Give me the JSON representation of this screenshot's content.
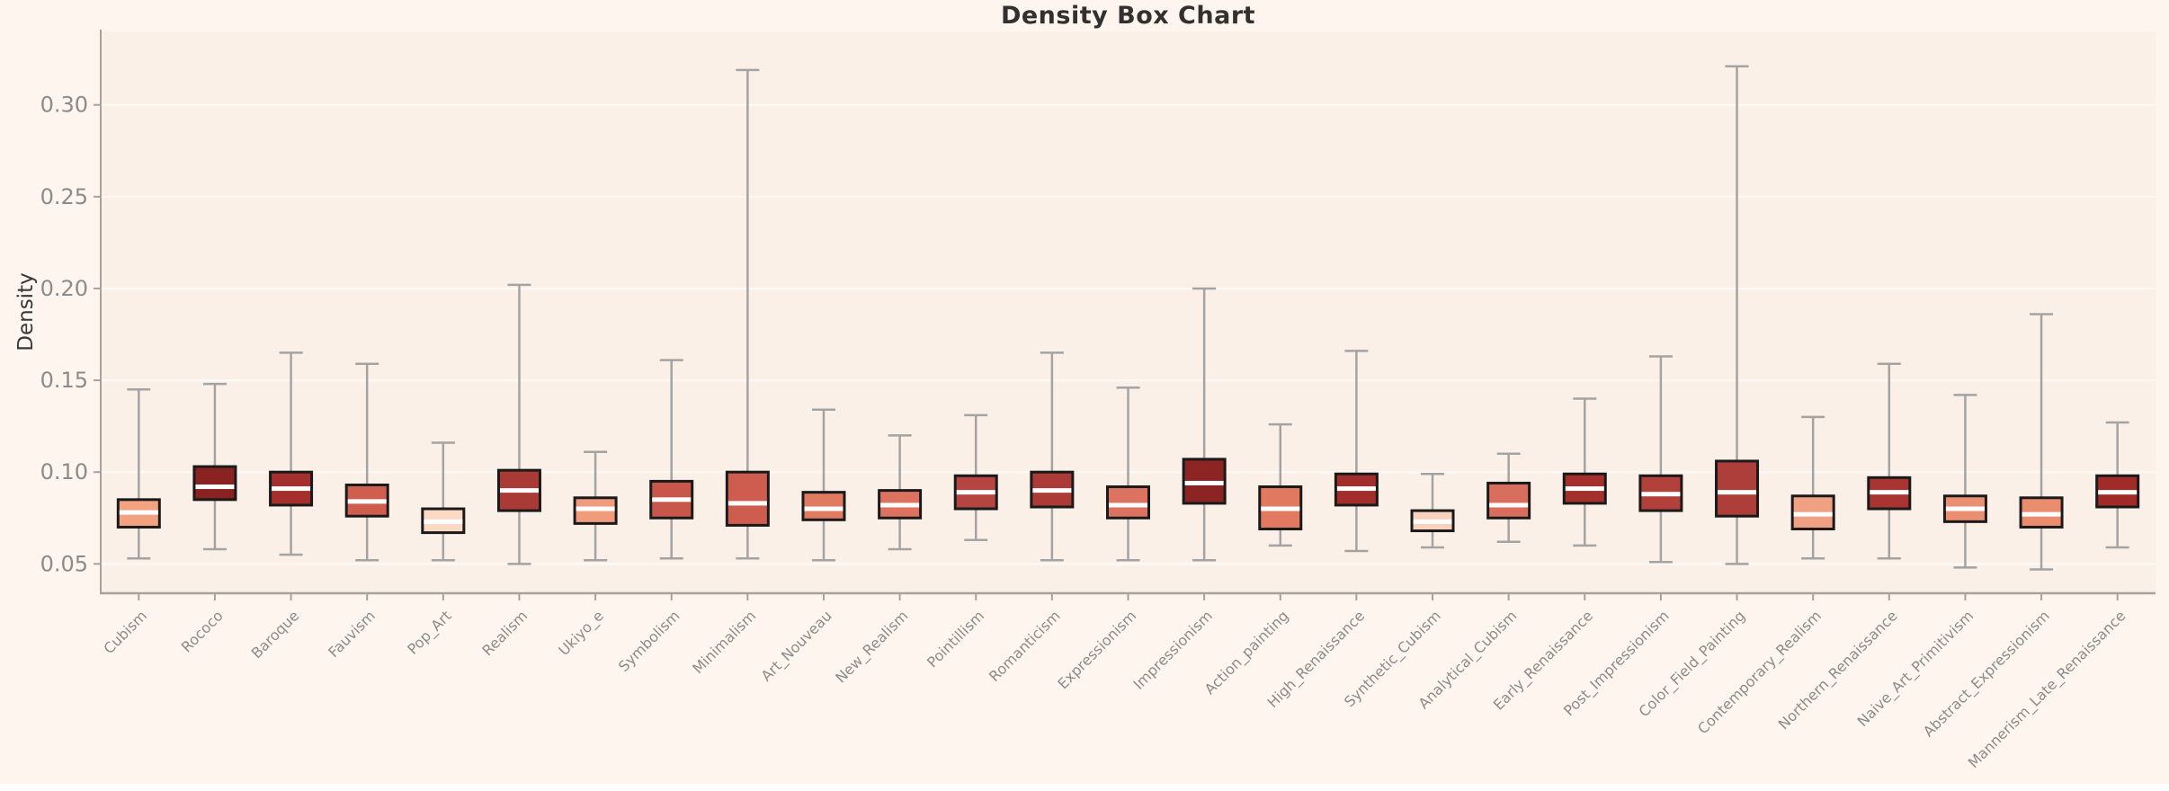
{
  "chart_data": {
    "type": "box",
    "title": "Density Box Chart",
    "ylabel": "Density",
    "xlabel": "",
    "ylim": [
      0.034,
      0.34
    ],
    "yticks": [
      0.05,
      0.1,
      0.15,
      0.2,
      0.25,
      0.3
    ],
    "grid": true,
    "legend": "none",
    "categories": [
      "Cubism",
      "Rococo",
      "Baroque",
      "Fauvism",
      "Pop_Art",
      "Realism",
      "Ukiyo_e",
      "Symbolism",
      "Minimalism",
      "Art_Nouveau",
      "New_Realism",
      "Pointillism",
      "Romanticism",
      "Expressionism",
      "Impressionism",
      "Action_painting",
      "High_Renaissance",
      "Synthetic_Cubism",
      "Analytical_Cubism",
      "Early_Renaissance",
      "Post_Impressionism",
      "Color_Field_Painting",
      "Contemporary_Realism",
      "Northern_Renaissance",
      "Naive_Art_Primitivism",
      "Abstract_Expressionism",
      "Mannerism_Late_Renaissance"
    ],
    "boxes": [
      {
        "category": "Cubism",
        "whislo": 0.053,
        "q1": 0.07,
        "med": 0.078,
        "q3": 0.085,
        "whishi": 0.145,
        "color": "#F2A181"
      },
      {
        "category": "Rococo",
        "whislo": 0.058,
        "q1": 0.085,
        "med": 0.092,
        "q3": 0.103,
        "whishi": 0.148,
        "color": "#8B2222"
      },
      {
        "category": "Baroque",
        "whislo": 0.055,
        "q1": 0.082,
        "med": 0.091,
        "q3": 0.1,
        "whishi": 0.165,
        "color": "#A52F2C"
      },
      {
        "category": "Fauvism",
        "whislo": 0.052,
        "q1": 0.076,
        "med": 0.084,
        "q3": 0.093,
        "whishi": 0.159,
        "color": "#D05E4E"
      },
      {
        "category": "Pop_Art",
        "whislo": 0.052,
        "q1": 0.067,
        "med": 0.073,
        "q3": 0.08,
        "whishi": 0.116,
        "color": "#FBD9C3"
      },
      {
        "category": "Realism",
        "whislo": 0.05,
        "q1": 0.079,
        "med": 0.09,
        "q3": 0.101,
        "whishi": 0.202,
        "color": "#AA3A35"
      },
      {
        "category": "Ukiyo_e",
        "whislo": 0.052,
        "q1": 0.072,
        "med": 0.08,
        "q3": 0.086,
        "whishi": 0.111,
        "color": "#F09B7B"
      },
      {
        "category": "Symbolism",
        "whislo": 0.053,
        "q1": 0.075,
        "med": 0.085,
        "q3": 0.095,
        "whishi": 0.161,
        "color": "#C8564B"
      },
      {
        "category": "Minimalism",
        "whislo": 0.053,
        "q1": 0.071,
        "med": 0.083,
        "q3": 0.1,
        "whishi": 0.319,
        "color": "#CE5C4F"
      },
      {
        "category": "Art_Nouveau",
        "whislo": 0.052,
        "q1": 0.074,
        "med": 0.08,
        "q3": 0.089,
        "whishi": 0.134,
        "color": "#E07A60"
      },
      {
        "category": "New_Realism",
        "whislo": 0.058,
        "q1": 0.075,
        "med": 0.082,
        "q3": 0.09,
        "whishi": 0.12,
        "color": "#DD7260"
      },
      {
        "category": "Pointillism",
        "whislo": 0.063,
        "q1": 0.08,
        "med": 0.089,
        "q3": 0.098,
        "whishi": 0.131,
        "color": "#B64440"
      },
      {
        "category": "Romanticism",
        "whislo": 0.052,
        "q1": 0.081,
        "med": 0.09,
        "q3": 0.1,
        "whishi": 0.165,
        "color": "#AC3A37"
      },
      {
        "category": "Expressionism",
        "whislo": 0.052,
        "q1": 0.075,
        "med": 0.082,
        "q3": 0.092,
        "whishi": 0.146,
        "color": "#DC7361"
      },
      {
        "category": "Impressionism",
        "whislo": 0.052,
        "q1": 0.083,
        "med": 0.094,
        "q3": 0.107,
        "whishi": 0.2,
        "color": "#8C2424"
      },
      {
        "category": "Action_painting",
        "whislo": 0.06,
        "q1": 0.069,
        "med": 0.08,
        "q3": 0.092,
        "whishi": 0.126,
        "color": "#E0795F"
      },
      {
        "category": "High_Renaissance",
        "whislo": 0.057,
        "q1": 0.082,
        "med": 0.091,
        "q3": 0.099,
        "whishi": 0.166,
        "color": "#A22D2B"
      },
      {
        "category": "Synthetic_Cubism",
        "whislo": 0.059,
        "q1": 0.068,
        "med": 0.073,
        "q3": 0.079,
        "whishi": 0.099,
        "color": "#FAD2BC"
      },
      {
        "category": "Analytical_Cubism",
        "whislo": 0.062,
        "q1": 0.075,
        "med": 0.082,
        "q3": 0.094,
        "whishi": 0.11,
        "color": "#DA6E5E"
      },
      {
        "category": "Early_Renaissance",
        "whislo": 0.06,
        "q1": 0.083,
        "med": 0.091,
        "q3": 0.099,
        "whishi": 0.14,
        "color": "#A52F2C"
      },
      {
        "category": "Post_Impressionism",
        "whislo": 0.051,
        "q1": 0.079,
        "med": 0.088,
        "q3": 0.098,
        "whishi": 0.163,
        "color": "#B2413C"
      },
      {
        "category": "Color_Field_Painting",
        "whislo": 0.05,
        "q1": 0.076,
        "med": 0.089,
        "q3": 0.106,
        "whishi": 0.321,
        "color": "#AE3E3A"
      },
      {
        "category": "Contemporary_Realism",
        "whislo": 0.053,
        "q1": 0.069,
        "med": 0.077,
        "q3": 0.087,
        "whishi": 0.13,
        "color": "#F0A083"
      },
      {
        "category": "Northern_Renaissance",
        "whislo": 0.053,
        "q1": 0.08,
        "med": 0.089,
        "q3": 0.097,
        "whishi": 0.159,
        "color": "#A93432"
      },
      {
        "category": "Naive_Art_Primitivism",
        "whislo": 0.048,
        "q1": 0.073,
        "med": 0.08,
        "q3": 0.087,
        "whishi": 0.142,
        "color": "#EB8F72"
      },
      {
        "category": "Abstract_Expressionism",
        "whislo": 0.047,
        "q1": 0.07,
        "med": 0.077,
        "q3": 0.086,
        "whishi": 0.186,
        "color": "#EA8C6E"
      },
      {
        "category": "Mannerism_Late_Renaissance",
        "whislo": 0.059,
        "q1": 0.081,
        "med": 0.089,
        "q3": 0.098,
        "whishi": 0.127,
        "color": "#A02B29"
      }
    ]
  },
  "colors": {
    "background": "#fdf5ee",
    "plot_background": "#fbf0e8",
    "grid": "#ffffff",
    "spine": "#a8a29c",
    "whisker": "#a3a3a3",
    "box_edge": "#1a1a1a",
    "median": "#ffffff",
    "tick_label": "#8b8b8b",
    "title": "#333130",
    "bottom_strip": "#ffffff"
  }
}
